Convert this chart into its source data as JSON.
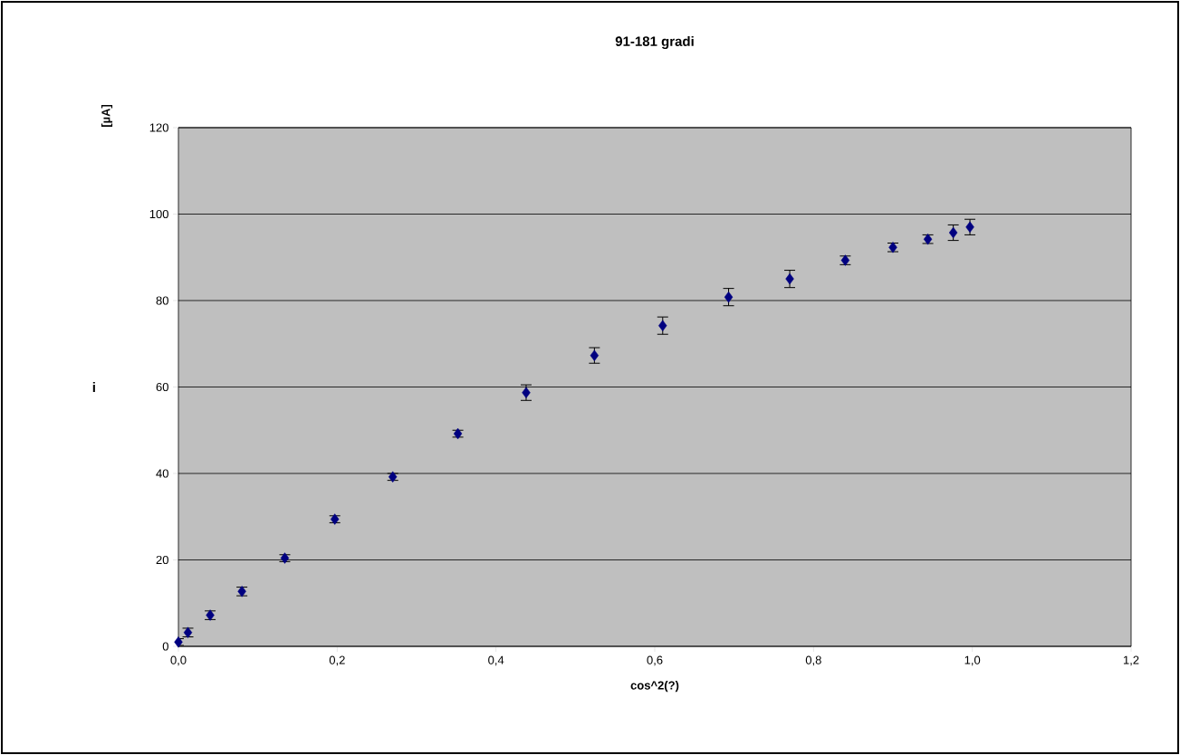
{
  "chart_data": {
    "type": "scatter",
    "title": "91-181 gradi",
    "xlabel": "cos^2(?)",
    "ylabel": "i",
    "annotations": [
      "[µA]"
    ],
    "x": [
      0.0,
      0.012,
      0.04,
      0.08,
      0.134,
      0.197,
      0.27,
      0.352,
      0.438,
      0.524,
      0.61,
      0.693,
      0.77,
      0.84,
      0.9,
      0.944,
      0.976,
      0.997
    ],
    "values": [
      1.0,
      3.2,
      7.2,
      12.7,
      20.4,
      29.4,
      39.2,
      49.2,
      58.7,
      67.3,
      74.2,
      80.8,
      85.0,
      89.3,
      92.3,
      94.2,
      95.7,
      97.0
    ],
    "errors": [
      0.8,
      1,
      1,
      1,
      0.8,
      0.8,
      0.8,
      0.8,
      1.8,
      1.8,
      2,
      2,
      2,
      1,
      1,
      1,
      1.8,
      1.8
    ],
    "color": "#000080",
    "marker": "diamond",
    "grid": "y",
    "xlim": [
      0,
      1.2
    ],
    "ylim": [
      0,
      120
    ],
    "xticks": [
      {
        "value": 0,
        "label": "0,0"
      },
      {
        "value": 0.2,
        "label": "0,2"
      },
      {
        "value": 0.4,
        "label": "0,4"
      },
      {
        "value": 0.6,
        "label": "0,6"
      },
      {
        "value": 0.8,
        "label": "0,8"
      },
      {
        "value": 1.0,
        "label": "1,0"
      },
      {
        "value": 1.2,
        "label": "1,2"
      }
    ],
    "yticks": [
      0,
      20,
      40,
      60,
      80,
      100,
      120
    ]
  }
}
